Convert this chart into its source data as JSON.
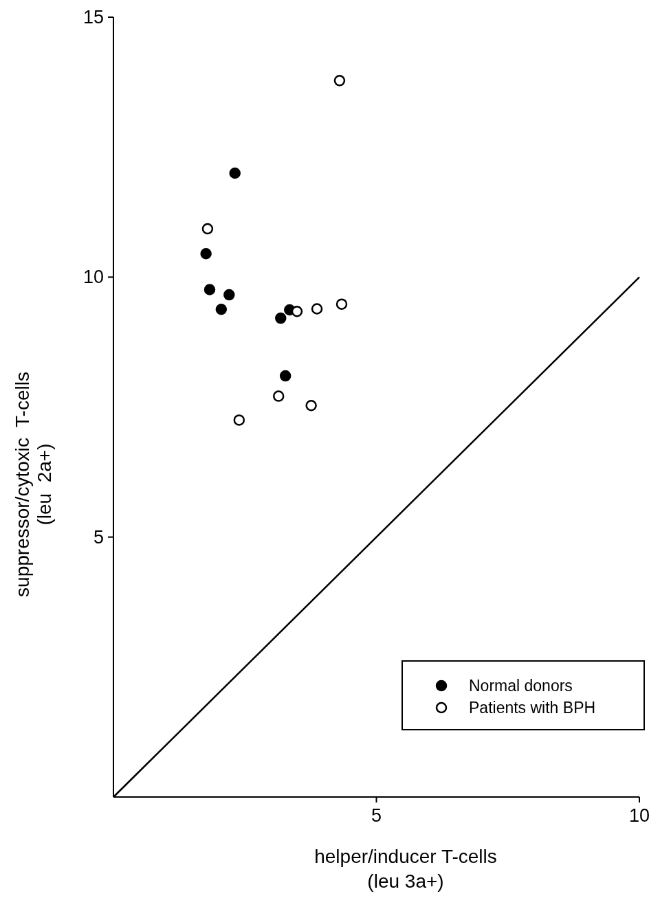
{
  "chart_data": {
    "type": "scatter",
    "xlabel": "helper/inducer T-cells\n(leu 3a+)",
    "ylabel": "suppressor/cytoxic  T-cells\n(leu  2a+)",
    "xlim": [
      0,
      10
    ],
    "ylim": [
      0,
      15
    ],
    "xticks": [
      5,
      10
    ],
    "yticks": [
      5,
      10,
      15
    ],
    "grid": false,
    "legend": "bottom right",
    "series": [
      {
        "name": "Normal donors",
        "color": "#000000",
        "marker": "circle",
        "x": [
          2.31,
          1.76,
          1.83,
          2.2,
          2.05,
          3.18,
          3.35,
          3.27
        ],
        "values": [
          12.0,
          10.45,
          9.76,
          9.66,
          9.38,
          9.21,
          9.37,
          8.1
        ]
      },
      {
        "name": "Patients with BPH",
        "color": "#ffffff",
        "marker": "circle",
        "x": [
          4.3,
          1.79,
          3.49,
          3.87,
          4.34,
          3.14,
          3.76,
          2.39
        ],
        "values": [
          13.78,
          10.93,
          9.34,
          9.39,
          9.48,
          7.71,
          7.53,
          7.25
        ]
      },
      {
        "type": "line",
        "color": "#000000",
        "line_style": "solid",
        "marker": "none",
        "x": [
          0,
          10
        ],
        "values": [
          0,
          10
        ]
      }
    ]
  }
}
